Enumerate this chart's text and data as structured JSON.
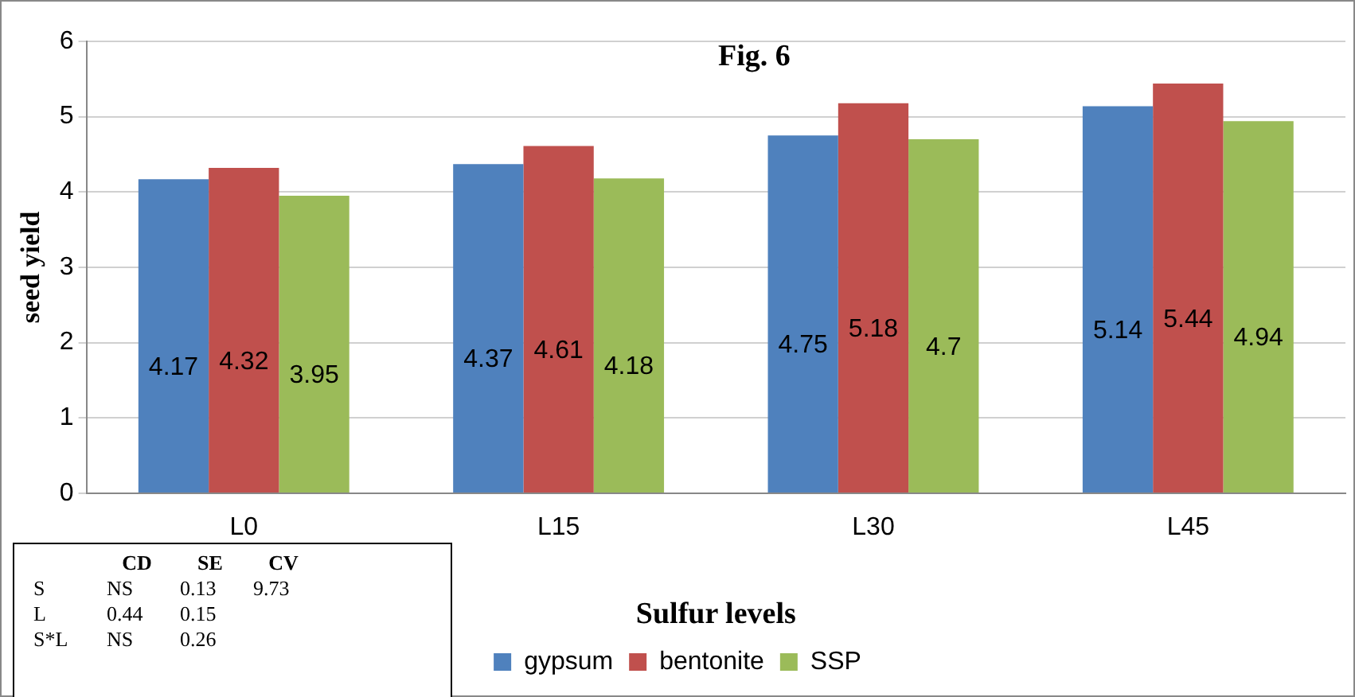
{
  "chart_data": {
    "type": "bar",
    "title": "Fig. 6",
    "xlabel": "Sulfur levels",
    "ylabel": "seed yield",
    "categories": [
      "L0",
      "L15",
      "L30",
      "L45"
    ],
    "series": [
      {
        "name": "gypsum",
        "color": "#4f81bd",
        "values": [
          4.17,
          4.37,
          4.75,
          5.14
        ]
      },
      {
        "name": "bentonite",
        "color": "#c0504d",
        "values": [
          4.32,
          4.61,
          5.18,
          5.44
        ]
      },
      {
        "name": "SSP",
        "color": "#9bbb59",
        "values": [
          3.95,
          4.18,
          4.7,
          4.94
        ]
      }
    ],
    "ylim": [
      0,
      6
    ],
    "yticks": [
      0,
      1,
      2,
      3,
      4,
      5,
      6
    ],
    "grid": "y",
    "legend": "bottom",
    "data_labels": true,
    "annotations": [
      " CD SE CV",
      "S NS 0.13 9.73",
      "L 0.44 0.15",
      "S*L NS 0.26"
    ]
  }
}
